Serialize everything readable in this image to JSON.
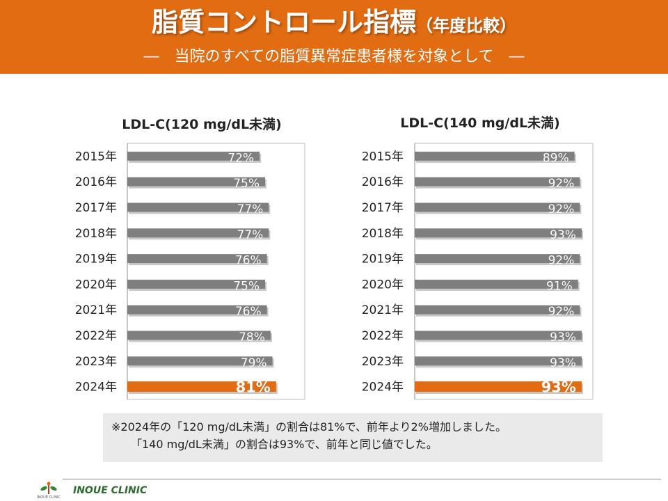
{
  "header": {
    "title": "脂質コントロール指標",
    "title_paren": "（年度比較）",
    "subtitle": "―　当院のすべての脂質異常症患者様を対象として　―"
  },
  "chart_data": [
    {
      "type": "bar",
      "orientation": "horizontal",
      "title": "LDL-C(120 mg/dL未満)",
      "categories": [
        "2015年",
        "2016年",
        "2017年",
        "2018年",
        "2019年",
        "2020年",
        "2021年",
        "2022年",
        "2023年",
        "2024年"
      ],
      "values": [
        72,
        75,
        77,
        77,
        76,
        75,
        76,
        78,
        79,
        81
      ],
      "labels": [
        "72%",
        "75%",
        "77%",
        "77%",
        "76%",
        "75%",
        "76%",
        "78%",
        "79%",
        "81%"
      ],
      "unit": "%",
      "xlim": [
        0,
        100
      ],
      "grid": false,
      "colors": {
        "default": "#7f7f7f",
        "highlight": "#e26c12"
      },
      "highlight_index": 9
    },
    {
      "type": "bar",
      "orientation": "horizontal",
      "title": "LDL-C(140 mg/dL未満)",
      "categories": [
        "2015年",
        "2016年",
        "2017年",
        "2018年",
        "2019年",
        "2020年",
        "2021年",
        "2022年",
        "2023年",
        "2024年"
      ],
      "values": [
        89,
        92,
        92,
        93,
        92,
        91,
        92,
        93,
        93,
        93
      ],
      "labels": [
        "89%",
        "92%",
        "92%",
        "93%",
        "92%",
        "91%",
        "92%",
        "93%",
        "93%",
        "93%"
      ],
      "unit": "%",
      "xlim": [
        0,
        100
      ],
      "grid": false,
      "colors": {
        "default": "#7f7f7f",
        "highlight": "#e26c12"
      },
      "highlight_index": 9
    }
  ],
  "note": {
    "line1": "※2024年の「120 mg/dL未満」の割合は81%で、前年より2%増加しました。",
    "line2": "「140 mg/dL未満」の割合は93%で、前年と同じ値でした。"
  },
  "footer": {
    "clinic_name": "INOUE CLINIC",
    "logo_text": "INOUE CLINIC"
  }
}
